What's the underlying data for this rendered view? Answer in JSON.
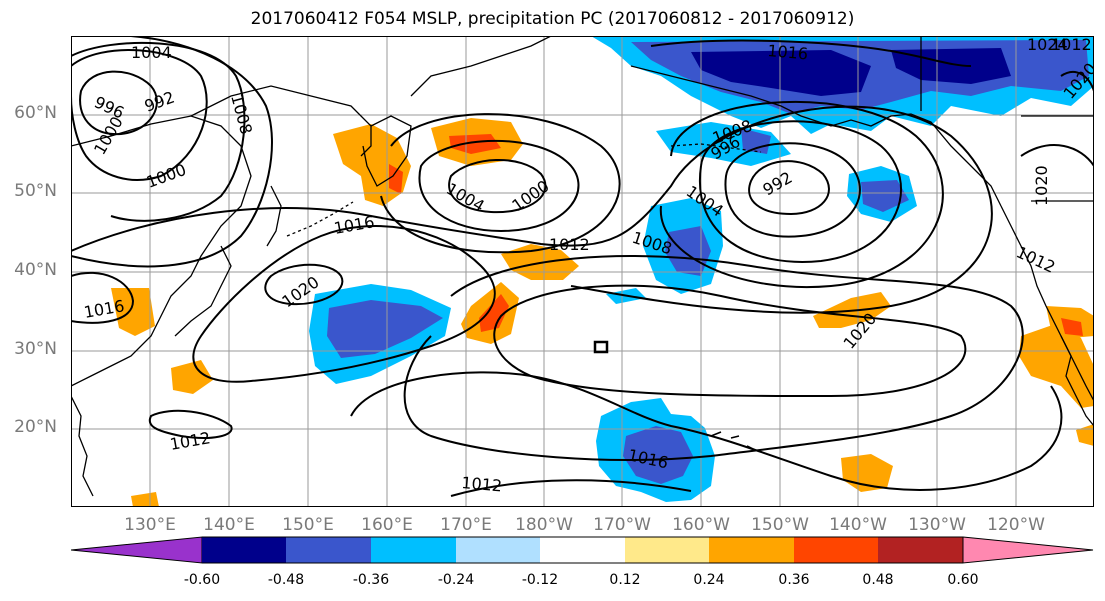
{
  "title": "2017060412 F054 MSLP, precipitation PC (2017060812 - 2017060912)",
  "map": {
    "projection": "cylindrical",
    "lon_range": [
      "120°E",
      "115°W"
    ],
    "lat_range": [
      "10°N",
      "70°N"
    ],
    "lat_labels": [
      "60°N",
      "50°N",
      "40°N",
      "30°N",
      "20°N"
    ],
    "lon_labels": [
      "130°E",
      "140°E",
      "150°E",
      "160°E",
      "170°E",
      "180°W",
      "170°W",
      "160°W",
      "150°W",
      "140°W",
      "130°W",
      "120°W"
    ],
    "grid": true,
    "grid_color": "#9a9a9a",
    "coastline_color": "#000000",
    "isobar_color": "#000000",
    "isobar_labels": [
      "1004",
      "996",
      "992",
      "1008",
      "1000",
      "1000",
      "1004",
      "1000",
      "1016",
      "1012",
      "1008",
      "1016",
      "1008",
      "996",
      "992",
      "1004",
      "1020",
      "1016",
      "1012",
      "1020",
      "1012",
      "1016",
      "1012",
      "1024",
      "1020",
      "1020",
      "1012"
    ]
  },
  "colorbar": {
    "ticks": [
      "-0.60",
      "-0.48",
      "-0.36",
      "-0.24",
      "-0.12",
      "0.12",
      "0.24",
      "0.36",
      "0.48",
      "0.60"
    ],
    "colors": [
      "#9932cc",
      "#00008b",
      "#3a56cc",
      "#00bfff",
      "#b0e0ff",
      "#ffffff",
      "#ffe98a",
      "#ffa500",
      "#ff4500",
      "#b22222",
      "#ff88b0"
    ],
    "extend": "both"
  },
  "legend_colors": {
    "neg_strong": "#00008b",
    "neg_mid": "#3a56cc",
    "neg": "#00bfff",
    "neg_weak": "#b0e0ff",
    "pos_weak": "#ffe98a",
    "pos": "#ffa500",
    "pos_mid": "#ff4500",
    "pos_strong": "#b22222"
  }
}
